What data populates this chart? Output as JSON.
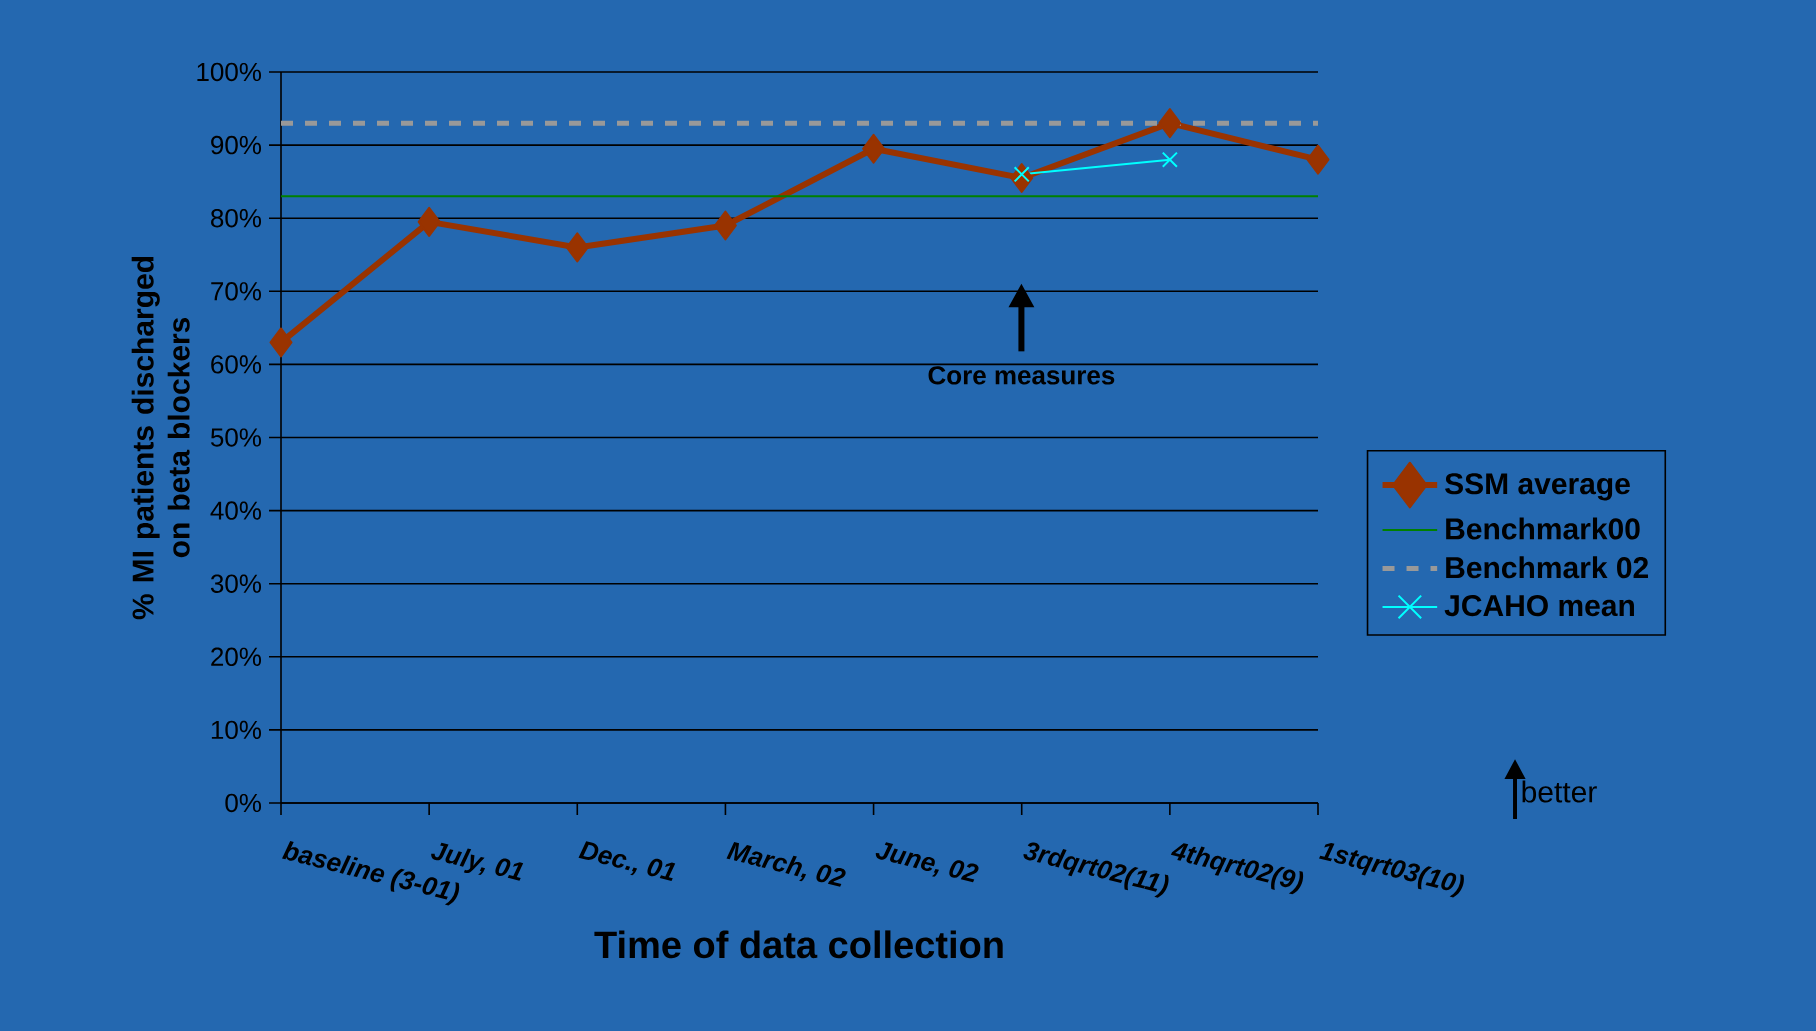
{
  "chart_data": {
    "type": "line",
    "xlabel": "Time of data collection",
    "ylabel": "% MI patients discharged on beta blockers",
    "categories": [
      "baseline (3-01)",
      "July, 01",
      "Dec., 01",
      "March, 02",
      "June, 02",
      "3rdqrt02(11)",
      "4thqrt02(9)",
      "1stqrt03(10)"
    ],
    "series": [
      {
        "name": "SSM average",
        "color": "#993300",
        "marker": "diamond",
        "line_style": "solid",
        "values": [
          63,
          79.5,
          76,
          79,
          89.5,
          85.5,
          93,
          88
        ]
      },
      {
        "name": "Benchmark00",
        "color": "#008000",
        "marker": "none",
        "line_style": "solid",
        "values": [
          83,
          83,
          83,
          83,
          83,
          83,
          83,
          83
        ]
      },
      {
        "name": "Benchmark 02",
        "color": "#999999",
        "marker": "none",
        "line_style": "dashed",
        "values": [
          93,
          93,
          93,
          93,
          93,
          93,
          93,
          93
        ]
      },
      {
        "name": "JCAHO mean",
        "color": "#00ffff",
        "marker": "cross",
        "line_style": "solid",
        "values": [
          null,
          null,
          null,
          null,
          null,
          86,
          88,
          null
        ]
      }
    ],
    "ylim": [
      0,
      100
    ],
    "yticks": [
      {
        "value": 0,
        "label": "0%"
      },
      {
        "value": 10,
        "label": "10%"
      },
      {
        "value": 20,
        "label": "20%"
      },
      {
        "value": 30,
        "label": "30%"
      },
      {
        "value": 40,
        "label": "40%"
      },
      {
        "value": 50,
        "label": "50%"
      },
      {
        "value": 60,
        "label": "60%"
      },
      {
        "value": 70,
        "label": "70%"
      },
      {
        "value": 80,
        "label": "80%"
      },
      {
        "value": 90,
        "label": "90%"
      },
      {
        "value": 100,
        "label": "100%"
      }
    ],
    "grid": "y",
    "legend": "right",
    "annotations": [
      "Core measures",
      "better"
    ]
  }
}
